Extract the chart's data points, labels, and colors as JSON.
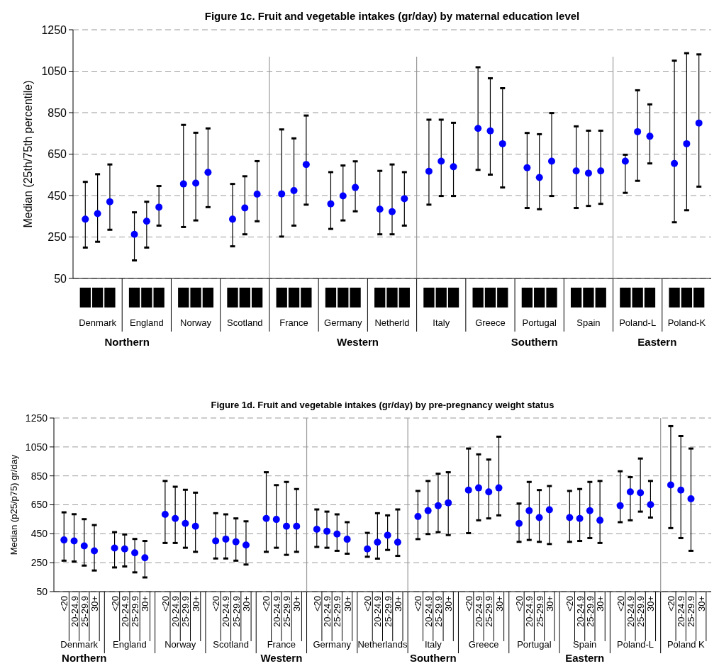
{
  "chart_data": [
    {
      "type": "scatter",
      "title": "Figure 1c. Fruit and vegetable intakes (gr/day) by maternal education level",
      "ylabel": "Median (25th/75th percentile)",
      "categories": [
        "Denmark",
        "England",
        "Norway",
        "Scotland",
        "France",
        "Germany",
        "Netherld",
        "Italy",
        "Greece",
        "Portugal",
        "Spain",
        "Poland-L",
        "Poland-K"
      ],
      "ylim": [
        50,
        1250
      ],
      "yticks": [
        50,
        250,
        450,
        650,
        850,
        1050,
        1250
      ],
      "grid": "y",
      "marker": "circle",
      "series": [
        {
          "color": "#0000ff",
          "values": [
            336,
            263,
            506,
            336,
            458,
            410,
            384,
            567,
            774,
            584,
            569,
            616,
            605
          ],
          "errors": [
            [
              199,
              516
            ],
            [
              137,
              369
            ],
            [
              298,
              791
            ],
            [
              205,
              506
            ],
            [
              252,
              769
            ],
            [
              289,
              563
            ],
            [
              263,
              569
            ],
            [
              406,
              816
            ],
            [
              574,
              1069
            ],
            [
              390,
              752
            ],
            [
              390,
              784
            ],
            [
              463,
              647
            ],
            [
              321,
              1101
            ]
          ]
        },
        {
          "color": "#0000ff",
          "values": [
            363,
            326,
            510,
            390,
            474,
            448,
            372,
            616,
            762,
            537,
            558,
            758,
            700
          ],
          "errors": [
            [
              227,
              553
            ],
            [
              199,
              420
            ],
            [
              330,
              753
            ],
            [
              263,
              543
            ],
            [
              305,
              726
            ],
            [
              330,
              595
            ],
            [
              263,
              600
            ],
            [
              448,
              816
            ],
            [
              551,
              1016
            ],
            [
              384,
              746
            ],
            [
              400,
              763
            ],
            [
              521,
              958
            ],
            [
              379,
              1137
            ]
          ]
        },
        {
          "color": "#0000ff",
          "values": [
            420,
            394,
            562,
            457,
            600,
            489,
            435,
            589,
            700,
            616,
            569,
            736,
            800
          ],
          "errors": [
            [
              285,
              600
            ],
            [
              305,
              496
            ],
            [
              394,
              774
            ],
            [
              326,
              616
            ],
            [
              406,
              836
            ],
            [
              374,
              615
            ],
            [
              305,
              563
            ],
            [
              448,
              801
            ],
            [
              489,
              968
            ],
            [
              448,
              848
            ],
            [
              410,
              763
            ],
            [
              605,
              890
            ],
            [
              493,
              1131
            ]
          ]
        }
      ],
      "annotations": [
        "Northern",
        "Western",
        "Southern",
        "Eastern"
      ]
    },
    {
      "type": "scatter",
      "title": "Figure 1d. Fruit and vegetable intakes (gr/day) by pre-pregnancy weight status",
      "ylabel": "Median (p25/p75) gr/day",
      "categories": [
        "Denmark",
        "England",
        "Norway",
        "Scotland",
        "France",
        "Germany",
        "Netherlands",
        "Italy",
        "Greece",
        "Portugal",
        "Spain",
        "Poland-L",
        "Poland K"
      ],
      "ylim": [
        50,
        1250
      ],
      "yticks": [
        50,
        250,
        450,
        650,
        850,
        1050,
        1250
      ],
      "grid": "y",
      "marker": "circle",
      "series": [
        {
          "name": "<20",
          "color": "#0000ff",
          "values": [
            407,
            351,
            584,
            400,
            556,
            481,
            345,
            569,
            752,
            521,
            562,
            644,
            787
          ],
          "errors": [
            [
              264,
              598
            ],
            [
              217,
              461
            ],
            [
              386,
              815
            ],
            [
              279,
              592
            ],
            [
              325,
              875
            ],
            [
              359,
              618
            ],
            [
              291,
              456
            ],
            [
              413,
              746
            ],
            [
              454,
              1039
            ],
            [
              394,
              659
            ],
            [
              394,
              746
            ],
            [
              530,
              882
            ],
            [
              489,
              1194
            ]
          ]
        },
        {
          "name": "20-24.9",
          "color": "#0000ff",
          "values": [
            400,
            345,
            556,
            413,
            549,
            467,
            392,
            610,
            767,
            610,
            556,
            739,
            752
          ],
          "errors": [
            [
              258,
              585
            ],
            [
              224,
              445
            ],
            [
              386,
              775
            ],
            [
              279,
              584
            ],
            [
              353,
              786
            ],
            [
              353,
              603
            ],
            [
              278,
              592
            ],
            [
              448,
              815
            ],
            [
              543,
              999
            ],
            [
              407,
              808
            ],
            [
              400,
              759
            ],
            [
              543,
              841
            ],
            [
              420,
              1125
            ]
          ]
        },
        {
          "name": "25-29.9",
          "color": "#0000ff",
          "values": [
            366,
            318,
            521,
            394,
            502,
            448,
            440,
            644,
            739,
            562,
            610,
            733,
            692
          ],
          "errors": [
            [
              230,
              551
            ],
            [
              183,
              414
            ],
            [
              353,
              754
            ],
            [
              264,
              556
            ],
            [
              304,
              808
            ],
            [
              332,
              584
            ],
            [
              338,
              577
            ],
            [
              461,
              865
            ],
            [
              556,
              963
            ],
            [
              394,
              752
            ],
            [
              420,
              808
            ],
            [
              603,
              970
            ],
            [
              332,
              1039
            ]
          ]
        },
        {
          "name": "30+",
          "color": "#0000ff",
          "values": [
            332,
            284,
            502,
            372,
            502,
            412,
            392,
            664,
            767,
            616,
            543,
            651,
            null
          ],
          "errors": [
            [
              196,
              510
            ],
            [
              148,
              400
            ],
            [
              325,
              734
            ],
            [
              237,
              536
            ],
            [
              325,
              759
            ],
            [
              312,
              530
            ],
            [
              297,
              618
            ],
            [
              441,
              875
            ],
            [
              577,
              1121
            ],
            [
              379,
              780
            ],
            [
              386,
              815
            ],
            [
              562,
              815
            ],
            null
          ]
        }
      ],
      "annotations": [
        "Northern",
        "Western",
        "Southern",
        "Eastern"
      ]
    }
  ]
}
